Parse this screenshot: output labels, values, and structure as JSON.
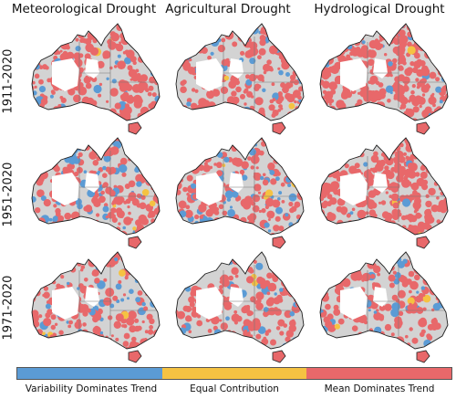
{
  "columns": [
    {
      "title": "Meteorological Drought"
    },
    {
      "title": "Agricultural Drought"
    },
    {
      "title": "Hydrological Drought"
    }
  ],
  "rows": [
    {
      "label": "1911-2020"
    },
    {
      "label": "1951-2020"
    },
    {
      "label": "1971-2020"
    }
  ],
  "colors": {
    "variability": "#5b9bd5",
    "equal": "#f5c242",
    "mean": "#e8686a",
    "land_base": "#d3d3d3",
    "outline": "#222222",
    "empty": "#ffffff"
  },
  "legend": {
    "items": [
      {
        "label": "Variability Dominates Trend",
        "color": "#5b9bd5"
      },
      {
        "label": "Equal Contribution",
        "color": "#f5c242"
      },
      {
        "label": "Mean Dominates Trend",
        "color": "#e8686a"
      }
    ]
  },
  "panels": [
    {
      "row": 0,
      "col": 0,
      "red_fraction": 0.6,
      "blue_fraction": 0.08
    },
    {
      "row": 0,
      "col": 1,
      "red_fraction": 0.45,
      "blue_fraction": 0.1
    },
    {
      "row": 0,
      "col": 2,
      "red_fraction": 0.8,
      "blue_fraction": 0.06
    },
    {
      "row": 1,
      "col": 0,
      "red_fraction": 0.5,
      "blue_fraction": 0.12
    },
    {
      "row": 1,
      "col": 1,
      "red_fraction": 0.45,
      "blue_fraction": 0.14
    },
    {
      "row": 1,
      "col": 2,
      "red_fraction": 0.75,
      "blue_fraction": 0.05
    },
    {
      "row": 2,
      "col": 0,
      "red_fraction": 0.45,
      "blue_fraction": 0.1
    },
    {
      "row": 2,
      "col": 1,
      "red_fraction": 0.45,
      "blue_fraction": 0.08
    },
    {
      "row": 2,
      "col": 2,
      "red_fraction": 0.45,
      "blue_fraction": 0.08
    }
  ]
}
